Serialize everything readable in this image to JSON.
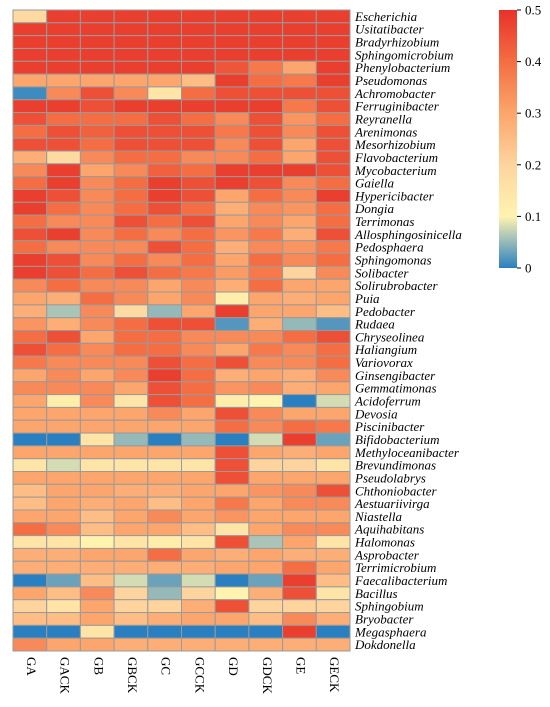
{
  "chart_data": {
    "type": "heatmap",
    "columns": [
      "GA",
      "GACK",
      "GB",
      "GBCK",
      "GC",
      "GCCK",
      "GD",
      "GDCK",
      "GE",
      "GECK"
    ],
    "rows": [
      "Escherichia",
      "Usitatibacter",
      "Bradyrhizobium",
      "Sphingomicrobium",
      "Phenylobacterium",
      "Pseudomonas",
      "Achromobacter",
      "Ferruginibacter",
      "Reyranella",
      "Arenimonas",
      "Mesorhizobium",
      "Flavobacterium",
      "Mycobacterium",
      "Gaiella",
      "Hypericibacter",
      "Dongia",
      "Terrimonas",
      "Allosphingosinicella",
      "Pedosphaera",
      "Sphingomonas",
      "Solibacter",
      "Solirubrobacter",
      "Puia",
      "Pedobacter",
      "Rudaea",
      "Chryseolinea",
      "Haliangium",
      "Variovorax",
      "Ginsengibacter",
      "Gemmatimonas",
      "Acidoferrum",
      "Devosia",
      "Piscinibacter",
      "Bifidobacterium",
      "Methyloceanibacter",
      "Brevundimonas",
      "Pseudolabrys",
      "Chthoniobacter",
      "Aestuariivirga",
      "Niastella",
      "Aquihabitans",
      "Halomonas",
      "Asprobacter",
      "Terrimicrobium",
      "Faecalibacterium",
      "Bacillus",
      "Sphingobium",
      "Bryobacter",
      "Megasphaera",
      "Dokdonella"
    ],
    "values": [
      [
        0.18,
        0.48,
        0.48,
        0.48,
        0.48,
        0.48,
        0.48,
        0.48,
        0.48,
        0.48
      ],
      [
        0.48,
        0.48,
        0.48,
        0.48,
        0.48,
        0.48,
        0.48,
        0.48,
        0.48,
        0.48
      ],
      [
        0.48,
        0.48,
        0.48,
        0.48,
        0.48,
        0.48,
        0.48,
        0.48,
        0.48,
        0.48
      ],
      [
        0.48,
        0.48,
        0.48,
        0.48,
        0.48,
        0.48,
        0.48,
        0.48,
        0.48,
        0.48
      ],
      [
        0.48,
        0.48,
        0.48,
        0.48,
        0.48,
        0.48,
        0.44,
        0.38,
        0.3,
        0.48
      ],
      [
        0.3,
        0.3,
        0.3,
        0.3,
        0.3,
        0.25,
        0.48,
        0.4,
        0.38,
        0.48
      ],
      [
        0.01,
        0.35,
        0.45,
        0.35,
        0.15,
        0.4,
        0.45,
        0.45,
        0.45,
        0.45
      ],
      [
        0.48,
        0.48,
        0.45,
        0.48,
        0.48,
        0.48,
        0.48,
        0.48,
        0.38,
        0.45
      ],
      [
        0.45,
        0.4,
        0.4,
        0.4,
        0.45,
        0.4,
        0.35,
        0.45,
        0.33,
        0.4
      ],
      [
        0.4,
        0.45,
        0.42,
        0.45,
        0.45,
        0.45,
        0.38,
        0.45,
        0.35,
        0.45
      ],
      [
        0.45,
        0.45,
        0.4,
        0.45,
        0.45,
        0.45,
        0.35,
        0.45,
        0.3,
        0.45
      ],
      [
        0.28,
        0.18,
        0.35,
        0.4,
        0.4,
        0.35,
        0.35,
        0.4,
        0.3,
        0.45
      ],
      [
        0.35,
        0.48,
        0.3,
        0.35,
        0.42,
        0.4,
        0.48,
        0.48,
        0.48,
        0.45
      ],
      [
        0.4,
        0.48,
        0.35,
        0.4,
        0.48,
        0.45,
        0.48,
        0.45,
        0.35,
        0.4
      ],
      [
        0.48,
        0.45,
        0.35,
        0.4,
        0.48,
        0.45,
        0.3,
        0.4,
        0.35,
        0.48
      ],
      [
        0.48,
        0.4,
        0.35,
        0.4,
        0.45,
        0.4,
        0.28,
        0.35,
        0.33,
        0.4
      ],
      [
        0.4,
        0.35,
        0.35,
        0.45,
        0.4,
        0.45,
        0.3,
        0.35,
        0.3,
        0.4
      ],
      [
        0.45,
        0.48,
        0.35,
        0.4,
        0.35,
        0.4,
        0.33,
        0.38,
        0.28,
        0.45
      ],
      [
        0.4,
        0.35,
        0.35,
        0.35,
        0.45,
        0.4,
        0.28,
        0.35,
        0.33,
        0.38
      ],
      [
        0.48,
        0.45,
        0.35,
        0.4,
        0.35,
        0.4,
        0.3,
        0.4,
        0.35,
        0.4
      ],
      [
        0.48,
        0.45,
        0.4,
        0.45,
        0.4,
        0.38,
        0.32,
        0.38,
        0.2,
        0.35
      ],
      [
        0.35,
        0.4,
        0.35,
        0.35,
        0.3,
        0.35,
        0.28,
        0.4,
        0.3,
        0.3
      ],
      [
        0.3,
        0.28,
        0.4,
        0.35,
        0.3,
        0.35,
        0.12,
        0.3,
        0.28,
        0.3
      ],
      [
        0.28,
        0.06,
        0.35,
        0.18,
        0.05,
        0.3,
        0.48,
        0.3,
        0.3,
        0.25
      ],
      [
        0.33,
        0.28,
        0.35,
        0.4,
        0.45,
        0.45,
        0.02,
        0.28,
        0.05,
        0.02
      ],
      [
        0.4,
        0.45,
        0.3,
        0.4,
        0.4,
        0.35,
        0.35,
        0.35,
        0.4,
        0.45
      ],
      [
        0.45,
        0.4,
        0.35,
        0.4,
        0.4,
        0.35,
        0.3,
        0.38,
        0.35,
        0.4
      ],
      [
        0.38,
        0.35,
        0.35,
        0.35,
        0.45,
        0.4,
        0.45,
        0.35,
        0.35,
        0.4
      ],
      [
        0.3,
        0.35,
        0.3,
        0.35,
        0.48,
        0.4,
        0.28,
        0.3,
        0.28,
        0.35
      ],
      [
        0.35,
        0.35,
        0.35,
        0.3,
        0.45,
        0.4,
        0.33,
        0.35,
        0.28,
        0.3
      ],
      [
        0.3,
        0.12,
        0.35,
        0.15,
        0.45,
        0.4,
        0.12,
        0.1,
        0.0,
        0.08
      ],
      [
        0.3,
        0.3,
        0.3,
        0.3,
        0.35,
        0.3,
        0.45,
        0.35,
        0.3,
        0.3
      ],
      [
        0.3,
        0.3,
        0.3,
        0.3,
        0.3,
        0.3,
        0.4,
        0.35,
        0.4,
        0.38
      ],
      [
        0.0,
        0.0,
        0.15,
        0.05,
        0.0,
        0.05,
        0.0,
        0.08,
        0.48,
        0.03
      ],
      [
        0.3,
        0.3,
        0.3,
        0.3,
        0.3,
        0.3,
        0.45,
        0.3,
        0.28,
        0.3
      ],
      [
        0.15,
        0.08,
        0.15,
        0.15,
        0.15,
        0.15,
        0.45,
        0.2,
        0.2,
        0.15
      ],
      [
        0.3,
        0.3,
        0.3,
        0.3,
        0.3,
        0.3,
        0.45,
        0.3,
        0.3,
        0.3
      ],
      [
        0.25,
        0.3,
        0.3,
        0.28,
        0.28,
        0.3,
        0.3,
        0.33,
        0.35,
        0.45
      ],
      [
        0.25,
        0.3,
        0.28,
        0.3,
        0.25,
        0.3,
        0.38,
        0.3,
        0.35,
        0.35
      ],
      [
        0.3,
        0.3,
        0.25,
        0.3,
        0.35,
        0.3,
        0.33,
        0.3,
        0.3,
        0.3
      ],
      [
        0.4,
        0.35,
        0.25,
        0.3,
        0.3,
        0.25,
        0.15,
        0.3,
        0.35,
        0.35
      ],
      [
        0.15,
        0.15,
        0.1,
        0.15,
        0.12,
        0.15,
        0.45,
        0.06,
        0.3,
        0.15
      ],
      [
        0.28,
        0.28,
        0.3,
        0.3,
        0.4,
        0.3,
        0.28,
        0.3,
        0.28,
        0.28
      ],
      [
        0.28,
        0.28,
        0.28,
        0.28,
        0.28,
        0.28,
        0.3,
        0.3,
        0.4,
        0.3
      ],
      [
        0.0,
        0.03,
        0.25,
        0.08,
        0.03,
        0.08,
        0.0,
        0.03,
        0.48,
        0.25
      ],
      [
        0.3,
        0.25,
        0.35,
        0.2,
        0.05,
        0.2,
        0.1,
        0.28,
        0.45,
        0.15
      ],
      [
        0.2,
        0.15,
        0.3,
        0.2,
        0.2,
        0.28,
        0.45,
        0.2,
        0.2,
        0.2
      ],
      [
        0.25,
        0.25,
        0.3,
        0.25,
        0.28,
        0.3,
        0.3,
        0.25,
        0.35,
        0.28
      ],
      [
        0.0,
        0.0,
        0.15,
        0.0,
        0.0,
        0.0,
        0.0,
        0.0,
        0.48,
        0.0
      ],
      [
        0.35,
        0.3,
        0.3,
        0.28,
        0.28,
        0.28,
        0.28,
        0.28,
        0.28,
        0.28
      ]
    ],
    "colorbar": {
      "ticks": [
        "0",
        "0.1",
        "0.2",
        "0.3",
        "0.4",
        "0.5"
      ],
      "range": [
        0,
        0.5
      ],
      "colors": [
        "#2a7fc1",
        "#fff3b0",
        "#fdd49e",
        "#fca56c",
        "#f46d43",
        "#e8322a"
      ]
    },
    "title": "",
    "xlabel": "",
    "ylabel": "",
    "grid": true,
    "legend": "right"
  }
}
